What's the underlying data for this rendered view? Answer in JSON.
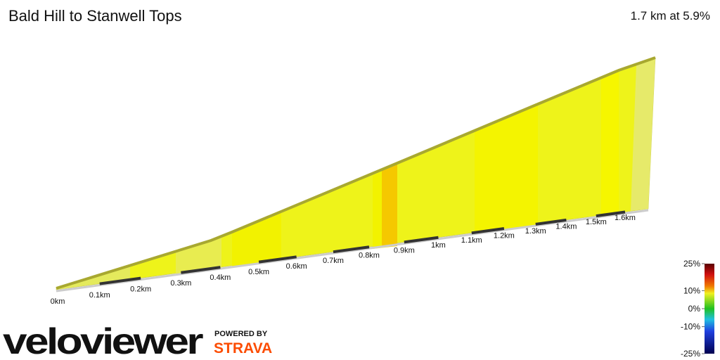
{
  "chart_data": {
    "type": "elevation-profile",
    "title": "Bald Hill to Stanwell Tops",
    "summary": "1.7 km at 5.9%",
    "distance_labels": [
      "0km",
      "0.1km",
      "0.2km",
      "0.3km",
      "0.4km",
      "0.5km",
      "0.6km",
      "0.7km",
      "0.8km",
      "0.9km",
      "1km",
      "1.1km",
      "1.2km",
      "1.3km",
      "1.4km",
      "1.5km",
      "1.6km"
    ],
    "gradient_scale": {
      "lim": [
        -25,
        25
      ],
      "ticks": [
        {
          "value": 25,
          "label": "25%"
        },
        {
          "value": 10,
          "label": "10%"
        },
        {
          "value": 0,
          "label": "0%"
        },
        {
          "value": -10,
          "label": "-10%"
        },
        {
          "value": -25,
          "label": "-25%"
        }
      ]
    },
    "branding": {
      "logo": "veloviewer",
      "powered": "POWERED BY",
      "strava": "STRAVA"
    }
  }
}
